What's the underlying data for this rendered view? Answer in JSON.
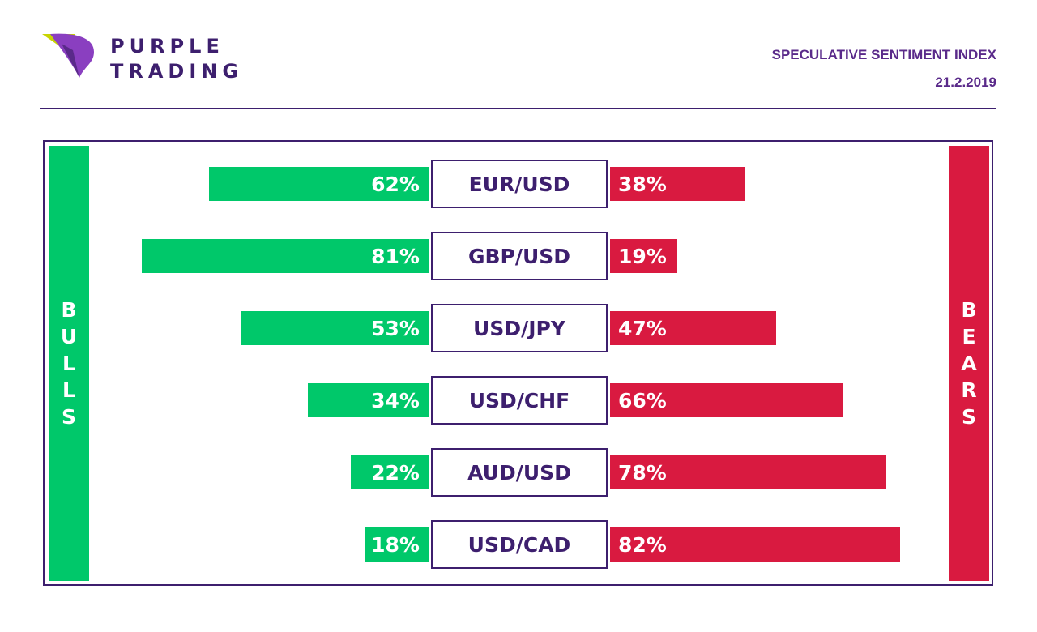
{
  "brand": {
    "line1": "PURPLE",
    "line2": "TRADING",
    "colors": {
      "purple": "#3d1f6e",
      "violet": "#8a3fc0",
      "lime": "#c8d400"
    }
  },
  "header": {
    "title": "SPECULATIVE SENTIMENT INDEX",
    "date": "21.2.2019"
  },
  "chart_data": {
    "type": "bar",
    "orientation": "horizontal-diverging",
    "title": "SPECULATIVE SENTIMENT INDEX",
    "left_label": "BULLS",
    "right_label": "BEARS",
    "categories": [
      "EUR/USD",
      "GBP/USD",
      "USD/JPY",
      "USD/CHF",
      "AUD/USD",
      "USD/CAD"
    ],
    "series": [
      {
        "name": "BULLS",
        "color": "#00c86a",
        "values": [
          62,
          81,
          53,
          34,
          22,
          18
        ]
      },
      {
        "name": "BEARS",
        "color": "#d91a40",
        "values": [
          38,
          19,
          47,
          66,
          78,
          82
        ]
      }
    ],
    "bull_labels": [
      "62%",
      "81%",
      "53%",
      "34%",
      "22%",
      "18%"
    ],
    "bear_labels": [
      "38%",
      "19%",
      "47%",
      "66%",
      "78%",
      "82%"
    ],
    "grid": false
  }
}
